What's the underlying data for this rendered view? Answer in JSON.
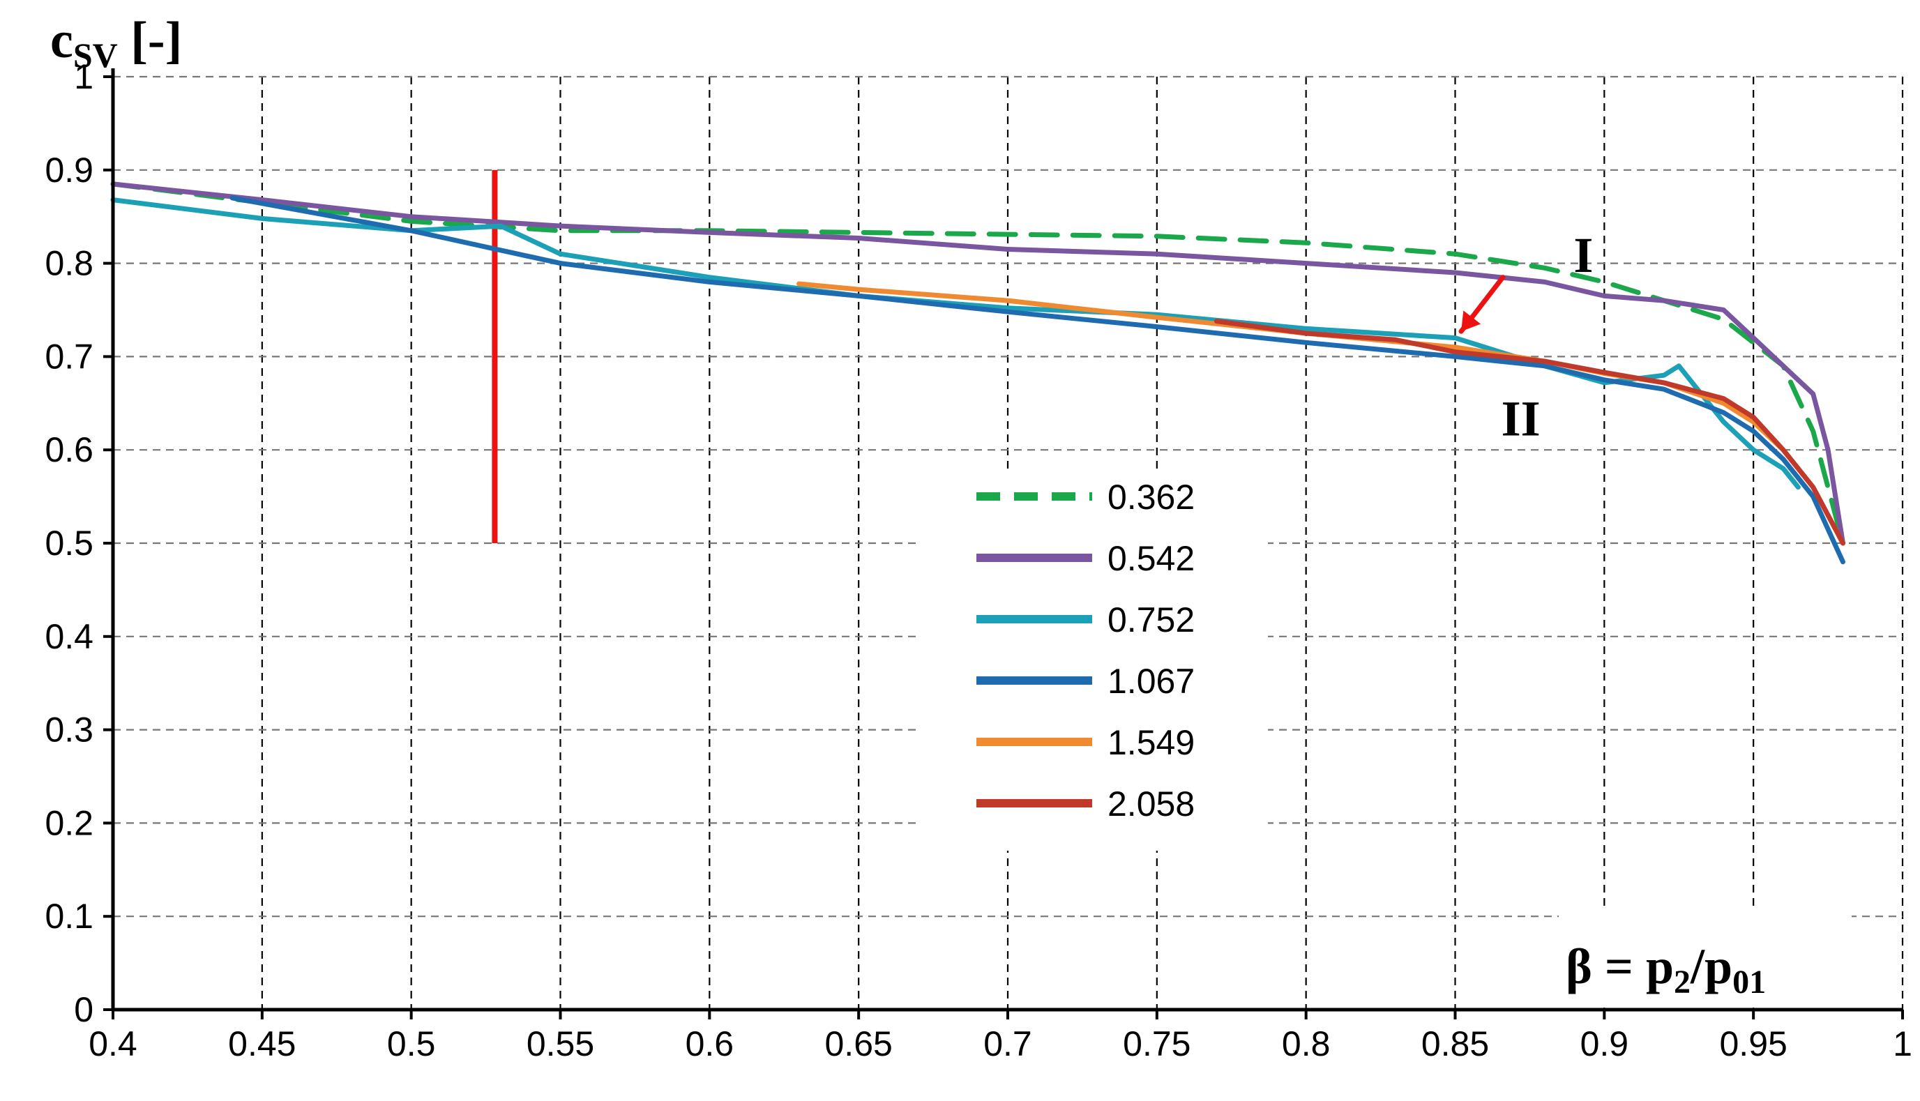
{
  "chart_data": {
    "type": "line",
    "xlabel": "β = p2/p01",
    "xlabel_parts": {
      "main": "β = p",
      "sub1": "2",
      "slash": "/p",
      "sub2": "01"
    },
    "ylabel": "cSV [-]",
    "ylabel_parts": {
      "main": "c",
      "sub": "SV",
      "unit": " [-]"
    },
    "xlim": [
      0.4,
      1.0
    ],
    "ylim": [
      0,
      1.0
    ],
    "x_ticks": [
      "0.4",
      "0.45",
      "0.5",
      "0.55",
      "0.6",
      "0.65",
      "0.7",
      "0.75",
      "0.8",
      "0.85",
      "0.9",
      "0.95",
      "1"
    ],
    "y_ticks": [
      "0",
      "0.1",
      "0.2",
      "0.3",
      "0.4",
      "0.5",
      "0.6",
      "0.7",
      "0.8",
      "0.9",
      "1"
    ],
    "grid": true,
    "legend_position": "center",
    "series": [
      {
        "name": "0.362",
        "color": "#1aa84a",
        "dashed": true,
        "x": [
          0.4,
          0.45,
          0.5,
          0.55,
          0.6,
          0.65,
          0.7,
          0.75,
          0.8,
          0.85,
          0.88,
          0.9,
          0.92,
          0.94,
          0.96,
          0.97,
          0.98
        ],
        "y": [
          0.885,
          0.865,
          0.845,
          0.835,
          0.835,
          0.833,
          0.831,
          0.829,
          0.822,
          0.81,
          0.795,
          0.78,
          0.76,
          0.74,
          0.69,
          0.62,
          0.5
        ]
      },
      {
        "name": "0.542",
        "color": "#7a55a0",
        "dashed": false,
        "x": [
          0.4,
          0.45,
          0.5,
          0.55,
          0.6,
          0.65,
          0.7,
          0.75,
          0.8,
          0.85,
          0.88,
          0.9,
          0.92,
          0.94,
          0.95,
          0.96,
          0.97,
          0.975,
          0.98
        ],
        "y": [
          0.885,
          0.868,
          0.85,
          0.84,
          0.833,
          0.827,
          0.815,
          0.81,
          0.8,
          0.79,
          0.78,
          0.765,
          0.76,
          0.75,
          0.72,
          0.69,
          0.66,
          0.6,
          0.5
        ]
      },
      {
        "name": "0.752",
        "color": "#1ba0b8",
        "dashed": false,
        "x": [
          0.4,
          0.45,
          0.5,
          0.53,
          0.55,
          0.6,
          0.65,
          0.7,
          0.75,
          0.8,
          0.85,
          0.88,
          0.9,
          0.92,
          0.925,
          0.93,
          0.94,
          0.95,
          0.96,
          0.965
        ],
        "y": [
          0.868,
          0.848,
          0.835,
          0.84,
          0.81,
          0.785,
          0.765,
          0.752,
          0.745,
          0.73,
          0.72,
          0.69,
          0.672,
          0.68,
          0.69,
          0.67,
          0.63,
          0.6,
          0.58,
          0.56
        ]
      },
      {
        "name": "1.067",
        "color": "#1f6bb0",
        "dashed": false,
        "x": [
          0.44,
          0.5,
          0.55,
          0.6,
          0.65,
          0.7,
          0.75,
          0.8,
          0.85,
          0.88,
          0.9,
          0.92,
          0.94,
          0.95,
          0.96,
          0.97,
          0.98
        ],
        "y": [
          0.87,
          0.835,
          0.8,
          0.78,
          0.765,
          0.748,
          0.732,
          0.715,
          0.7,
          0.69,
          0.675,
          0.665,
          0.64,
          0.62,
          0.59,
          0.55,
          0.48
        ]
      },
      {
        "name": "1.549",
        "color": "#f08a30",
        "dashed": false,
        "x": [
          0.63,
          0.65,
          0.7,
          0.75,
          0.8,
          0.85,
          0.88,
          0.9,
          0.92,
          0.94,
          0.95,
          0.96,
          0.97,
          0.98
        ],
        "y": [
          0.778,
          0.772,
          0.76,
          0.742,
          0.725,
          0.71,
          0.695,
          0.682,
          0.672,
          0.65,
          0.63,
          0.6,
          0.56,
          0.5
        ]
      },
      {
        "name": "2.058",
        "color": "#c0392b",
        "dashed": false,
        "x": [
          0.77,
          0.8,
          0.83,
          0.85,
          0.88,
          0.9,
          0.92,
          0.94,
          0.95,
          0.96,
          0.97,
          0.98
        ],
        "y": [
          0.738,
          0.725,
          0.718,
          0.705,
          0.695,
          0.683,
          0.672,
          0.655,
          0.635,
          0.6,
          0.56,
          0.5
        ]
      }
    ],
    "annotations": [
      {
        "label": "I",
        "x": 0.893,
        "y": 0.81
      },
      {
        "label": "II",
        "x": 0.872,
        "y": 0.635
      }
    ],
    "marker_line": {
      "color": "#ee1111",
      "x": 0.528,
      "y_from": 0.5,
      "y_to": 0.9
    },
    "arrow": {
      "color": "#ee1111",
      "x_from": 0.866,
      "y_from": 0.785,
      "x_to": 0.852,
      "y_to": 0.727
    }
  }
}
